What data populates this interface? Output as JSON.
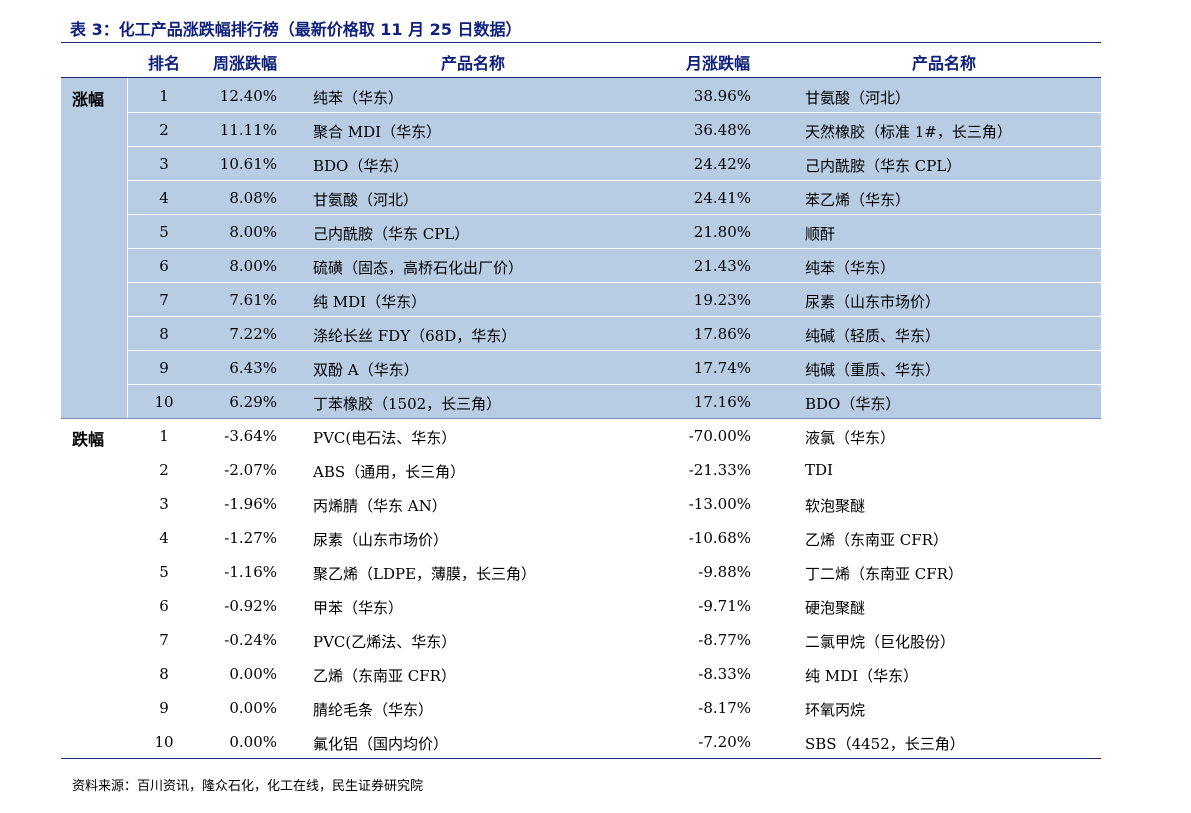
{
  "title": "表 3：化工产品涨跌幅排行榜（最新价格取 11 月 25 日数据）",
  "headers": {
    "rank": "排名",
    "weekly_change": "周涨跌幅",
    "product_name_weekly": "产品名称",
    "monthly_change": "月涨跌幅",
    "product_name_monthly": "产品名称"
  },
  "gainers": {
    "label": "涨幅",
    "rows": [
      {
        "rank": "1",
        "week": "12.40%",
        "name1": "纯苯（华东）",
        "month": "38.96%",
        "name2": "甘氨酸（河北）"
      },
      {
        "rank": "2",
        "week": "11.11%",
        "name1": "聚合 MDI（华东）",
        "month": "36.48%",
        "name2": "天然橡胶（标准 1#，长三角）"
      },
      {
        "rank": "3",
        "week": "10.61%",
        "name1": "BDO（华东）",
        "month": "24.42%",
        "name2": "己内酰胺（华东 CPL）"
      },
      {
        "rank": "4",
        "week": "8.08%",
        "name1": "甘氨酸（河北）",
        "month": "24.41%",
        "name2": "苯乙烯（华东）"
      },
      {
        "rank": "5",
        "week": "8.00%",
        "name1": "己内酰胺（华东 CPL）",
        "month": "21.80%",
        "name2": "顺酐"
      },
      {
        "rank": "6",
        "week": "8.00%",
        "name1": "硫磺（固态，高桥石化出厂价）",
        "month": "21.43%",
        "name2": "纯苯（华东）"
      },
      {
        "rank": "7",
        "week": "7.61%",
        "name1": "纯 MDI（华东）",
        "month": "19.23%",
        "name2": "尿素（山东市场价）"
      },
      {
        "rank": "8",
        "week": "7.22%",
        "name1": "涤纶长丝 FDY（68D，华东）",
        "month": "17.86%",
        "name2": "纯碱（轻质、华东）"
      },
      {
        "rank": "9",
        "week": "6.43%",
        "name1": "双酚 A（华东）",
        "month": "17.74%",
        "name2": "纯碱（重质、华东）"
      },
      {
        "rank": "10",
        "week": "6.29%",
        "name1": "丁苯橡胶（1502，长三角）",
        "month": "17.16%",
        "name2": "BDO（华东）"
      }
    ]
  },
  "losers": {
    "label": "跌幅",
    "rows": [
      {
        "rank": "1",
        "week": "-3.64%",
        "name1": "PVC(电石法、华东）",
        "month": "-70.00%",
        "name2": "液氯（华东）"
      },
      {
        "rank": "2",
        "week": "-2.07%",
        "name1": "ABS（通用，长三角）",
        "month": "-21.33%",
        "name2": "TDI"
      },
      {
        "rank": "3",
        "week": "-1.96%",
        "name1": "丙烯腈（华东 AN）",
        "month": "-13.00%",
        "name2": "软泡聚醚"
      },
      {
        "rank": "4",
        "week": "-1.27%",
        "name1": "尿素（山东市场价）",
        "month": "-10.68%",
        "name2": "乙烯（东南亚 CFR）"
      },
      {
        "rank": "5",
        "week": "-1.16%",
        "name1": "聚乙烯（LDPE，薄膜，长三角）",
        "month": "-9.88%",
        "name2": "丁二烯（东南亚 CFR）"
      },
      {
        "rank": "6",
        "week": "-0.92%",
        "name1": "甲苯（华东）",
        "month": "-9.71%",
        "name2": "硬泡聚醚"
      },
      {
        "rank": "7",
        "week": "-0.24%",
        "name1": "PVC(乙烯法、华东）",
        "month": "-8.77%",
        "name2": "二氯甲烷（巨化股份）"
      },
      {
        "rank": "8",
        "week": "0.00%",
        "name1": "乙烯（东南亚 CFR）",
        "month": "-8.33%",
        "name2": "纯 MDI（华东）"
      },
      {
        "rank": "9",
        "week": "0.00%",
        "name1": "腈纶毛条（华东）",
        "month": "-8.17%",
        "name2": "环氧丙烷"
      },
      {
        "rank": "10",
        "week": "0.00%",
        "name1": "氟化铝（国内均价）",
        "month": "-7.20%",
        "name2": "SBS（4452，长三角）"
      }
    ]
  },
  "source": "资料来源：百川资讯，隆众石化，化工在线，民生证券研究院",
  "colors": {
    "title": "#0d1f7a",
    "band": "#b8cce4",
    "rule": "#1a2a80"
  }
}
